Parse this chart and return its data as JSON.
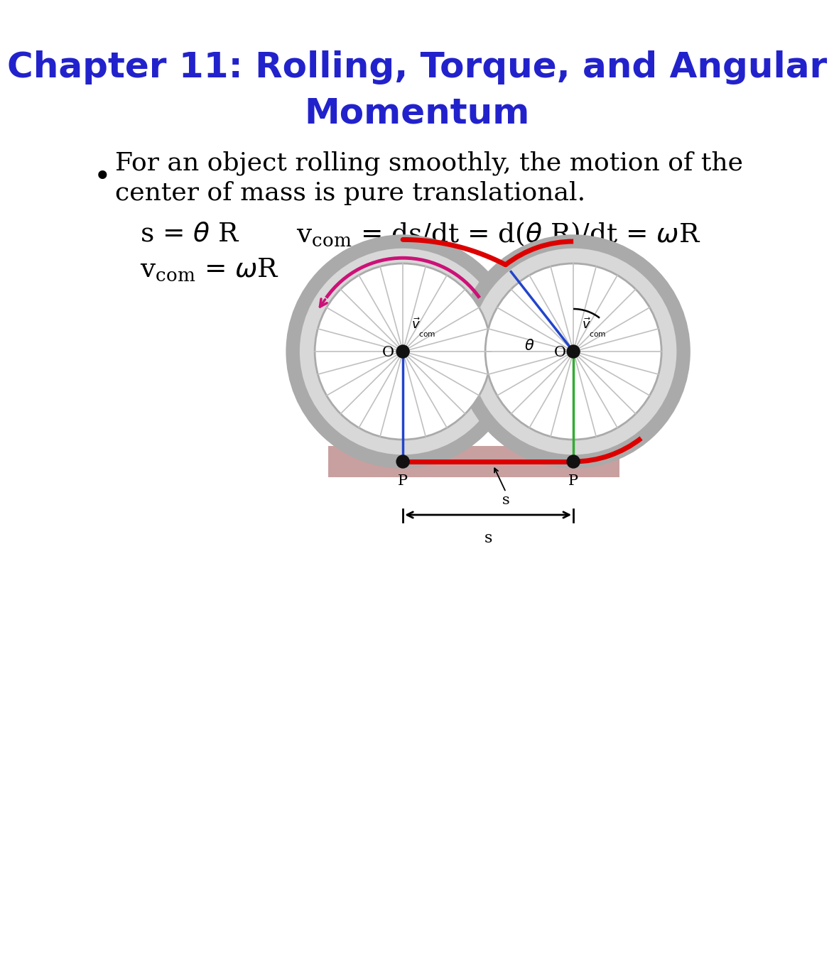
{
  "title_line1": "Chapter 11: Rolling, Torque, and Angular",
  "title_line2": "Momentum",
  "title_color": "#2222CC",
  "title_fontsize": 36,
  "bullet_fontsize": 26,
  "eq_fontsize": 25,
  "bg_color": "#ffffff",
  "wheel_color": "#d8d8d8",
  "wheel_edge_color": "#aaaaaa",
  "spoke_color": "#c0c0c0",
  "hub_color": "#111111",
  "arrow_color": "#cc1177",
  "ground_fill": "#c8a0a0",
  "red_line_color": "#dd0000",
  "blue_line_color": "#2244cc",
  "green_line_color": "#33aa33",
  "black": "#000000"
}
